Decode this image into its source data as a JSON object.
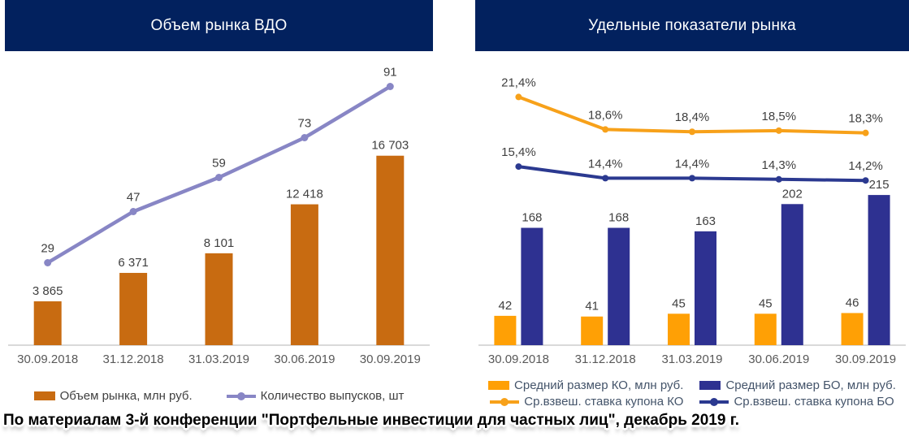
{
  "caption": "По материалам 3-й конференции \"Портфельные инвестиции для частных лиц\", декабрь 2019 г.",
  "colors": {
    "header_bg": "#02215E",
    "header_text": "#FFFFFF",
    "axis_line": "#D9D9D9",
    "data_label": "#404040",
    "x_label": "#595959",
    "right_legend_text": "#44546A"
  },
  "chart_data": [
    {
      "type": "bar+line",
      "title": "Объем рынка ВДО",
      "categories": [
        "30.09.2018",
        "31.12.2018",
        "31.03.2019",
        "30.06.2019",
        "30.09.2019"
      ],
      "series": [
        {
          "name": "Объем рынка, млн руб.",
          "type": "bar",
          "color": "#C86B11",
          "values": [
            3865,
            6371,
            8101,
            12418,
            16703
          ],
          "labels": [
            "3 865",
            "6 371",
            "8 101",
            "12 418",
            "16 703"
          ],
          "ylim": [
            0,
            17900
          ]
        },
        {
          "name": "Количество выпусков, шт",
          "type": "line",
          "color": "#8886C5",
          "values": [
            29,
            47,
            59,
            73,
            91
          ],
          "labels": [
            "29",
            "47",
            "59",
            "73",
            "91"
          ],
          "ylim": [
            0,
            100
          ]
        }
      ],
      "xlabel": "",
      "ylabel": "",
      "grid": false,
      "legend_position": "bottom"
    },
    {
      "type": "bar+line",
      "title": "Удельные показатели рынка",
      "categories": [
        "30.09.2018",
        "31.12.2018",
        "31.03.2019",
        "30.06.2019",
        "30.09.2019"
      ],
      "series": [
        {
          "name": "Средний размер КО, млн руб.",
          "type": "bar",
          "color": "#FFA005",
          "values": [
            42,
            41,
            45,
            45,
            46
          ],
          "labels": [
            "42",
            "41",
            "45",
            "45",
            "46"
          ],
          "ylim": [
            0,
            250
          ]
        },
        {
          "name": "Средний размер БО, млн руб.",
          "type": "bar",
          "color": "#2E3191",
          "values": [
            168,
            168,
            163,
            202,
            215
          ],
          "labels": [
            "168",
            "168",
            "163",
            "202",
            "215"
          ],
          "ylim": [
            0,
            250
          ]
        },
        {
          "name": "Ср.взвеш. ставка купона КО",
          "type": "line",
          "color": "#F7A11A",
          "values": [
            21.4,
            18.6,
            18.4,
            18.5,
            18.3
          ],
          "labels": [
            "21,4%",
            "18,6%",
            "18,4%",
            "18,5%",
            "18,3%"
          ],
          "ylim": [
            0,
            25
          ]
        },
        {
          "name": "Ср.взвеш. ставка купона БО",
          "type": "line",
          "color": "#2B3990",
          "values": [
            15.4,
            14.4,
            14.4,
            14.3,
            14.2
          ],
          "labels": [
            "15,4%",
            "14,4%",
            "14,4%",
            "14,3%",
            "14,2%"
          ],
          "ylim": [
            0,
            25
          ]
        }
      ],
      "xlabel": "",
      "ylabel": "",
      "grid": false,
      "legend_position": "bottom"
    }
  ]
}
